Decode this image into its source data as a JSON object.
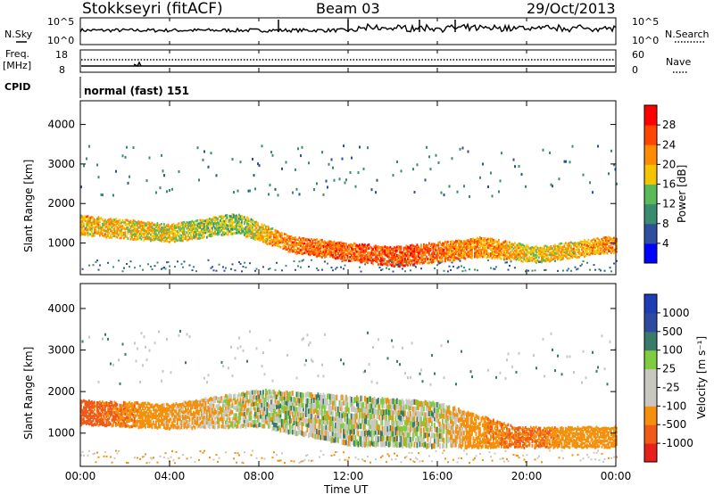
{
  "header": {
    "station": "Stokkseyri (fitACF)",
    "beam": "Beam 03",
    "date": "29/Oct/2013"
  },
  "top_panels": {
    "nsky_label": "N.Sky",
    "nsky_ticks": [
      "10^5",
      "10^0"
    ],
    "nsearch_label": "N.Search",
    "nsearch_ticks": [
      "10^5",
      "10^0"
    ],
    "freq_label": "Freq.",
    "freq_unit": "[MHz]",
    "freq_ticks": [
      "18",
      "8"
    ],
    "nave_label": "Nave",
    "nave_ticks": [
      "60",
      "0"
    ],
    "cpid_label": "CPID",
    "cpid_value": "normal (fast) 151"
  },
  "colors": {
    "power_scale": [
      "#0000ff",
      "#2d4f9e",
      "#3a8c6e",
      "#5aba5a",
      "#f5c400",
      "#ff8c00",
      "#ff4500",
      "#ff0000"
    ],
    "velocity_scale": [
      "#e8201c",
      "#f05a16",
      "#f5900c",
      "#c8c8c0",
      "#c8c8c0",
      "#80cc40",
      "#3a7a6a",
      "#2d4aa0",
      "#1e3cb4"
    ]
  },
  "chart_data": [
    {
      "type": "heatmap",
      "panel": "power",
      "ylabel": "Slant Range [km]",
      "yticks": [
        "1000",
        "2000",
        "3000",
        "4000"
      ],
      "ylim": [
        200,
        4600
      ],
      "colorbar_label": "Power [dB]",
      "colorbar_ticks": [
        "28",
        "24",
        "20",
        "16",
        "12",
        "8",
        "4"
      ],
      "bands": [
        {
          "t": 0.0,
          "range": 1450,
          "width": 500,
          "power": 22
        },
        {
          "t": 4.0,
          "range": 1250,
          "width": 450,
          "power": 20
        },
        {
          "t": 7.0,
          "range": 1500,
          "width": 500,
          "power": 16
        },
        {
          "t": 9.5,
          "range": 950,
          "width": 400,
          "power": 26
        },
        {
          "t": 14.0,
          "range": 650,
          "width": 500,
          "power": 28
        },
        {
          "t": 18.0,
          "range": 900,
          "width": 500,
          "power": 24
        },
        {
          "t": 20.5,
          "range": 700,
          "width": 400,
          "power": 20
        },
        {
          "t": 23.5,
          "range": 950,
          "width": 400,
          "power": 24
        }
      ]
    },
    {
      "type": "heatmap",
      "panel": "velocity",
      "ylabel": "Slant Range [km]",
      "yticks": [
        "1000",
        "2000",
        "3000",
        "4000"
      ],
      "ylim": [
        200,
        4600
      ],
      "xlabel": "Time UT",
      "xticks": [
        "00:00",
        "04:00",
        "08:00",
        "12:00",
        "16:00",
        "20:00",
        "00:00"
      ],
      "xlim": [
        0,
        24
      ],
      "colorbar_label": "Velocity [m s⁻¹]",
      "colorbar_ticks": [
        "1000",
        "500",
        "100",
        "25",
        "-25",
        "-100",
        "-500",
        "-1000"
      ],
      "bands": [
        {
          "t": 0.0,
          "range": 1500,
          "width": 600,
          "velocity": -700
        },
        {
          "t": 4.0,
          "range": 1400,
          "width": 600,
          "velocity": -200
        },
        {
          "t": 8.0,
          "range": 1600,
          "width": 900,
          "velocity": 0
        },
        {
          "t": 12.0,
          "range": 1300,
          "width": 1200,
          "velocity": 0
        },
        {
          "t": 16.0,
          "range": 1200,
          "width": 1100,
          "velocity": 0
        },
        {
          "t": 19.5,
          "range": 900,
          "width": 500,
          "velocity": -600
        },
        {
          "t": 22.0,
          "range": 900,
          "width": 500,
          "velocity": -300
        }
      ]
    }
  ]
}
